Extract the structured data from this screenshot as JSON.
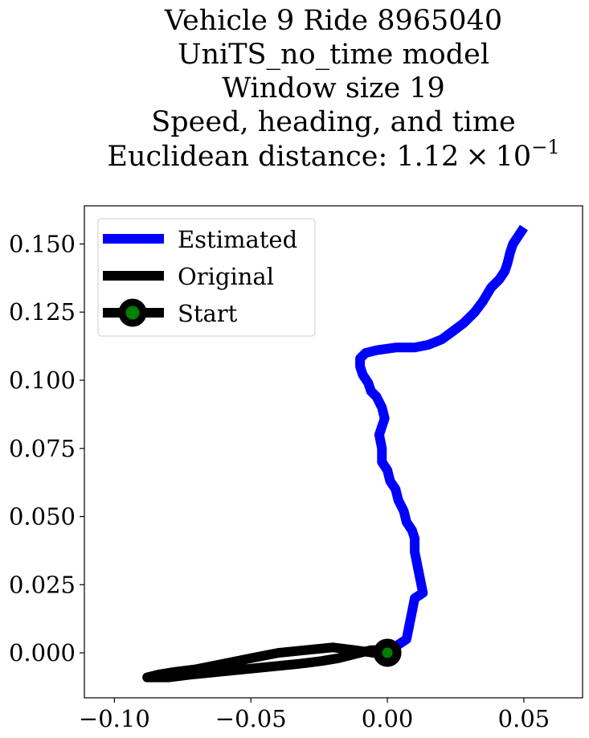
{
  "chart_data": {
    "type": "line",
    "title_lines": [
      "Vehicle 9 Ride 8965040",
      "UniTS_no_time model",
      "Window size 19",
      "Speed, heading, and time"
    ],
    "title_metric_prefix": "Euclidean distance: 1.12",
    "title_metric_times": "×",
    "title_metric_base": "10",
    "title_metric_exponent": "−1",
    "xlim": [
      -0.111,
      0.0715
    ],
    "ylim": [
      -0.0165,
      0.164
    ],
    "x_ticks": [
      -0.1,
      -0.05,
      0.0,
      0.05
    ],
    "x_tick_labels": [
      "−0.10",
      "−0.05",
      "0.00",
      "0.05"
    ],
    "y_ticks": [
      0.0,
      0.025,
      0.05,
      0.075,
      0.1,
      0.125,
      0.15
    ],
    "y_tick_labels": [
      "0.000",
      "0.025",
      "0.050",
      "0.075",
      "0.100",
      "0.125",
      "0.150"
    ],
    "grid": false,
    "legend_position": "upper-left",
    "colors": {
      "estimated": "#0000ff",
      "original": "#000000",
      "start_fill": "#008000",
      "start_edge": "#000000"
    },
    "series": [
      {
        "name": "Estimated",
        "x": [
          0.0,
          0.004,
          0.007,
          0.008,
          0.009,
          0.01,
          0.013,
          0.012,
          0.011,
          0.01,
          0.01,
          0.009,
          0.007,
          0.006,
          0.004,
          0.003,
          0.001,
          0.0,
          -0.002,
          -0.002,
          -0.003,
          -0.002,
          -0.001,
          -0.002,
          -0.004,
          -0.006,
          -0.007,
          -0.009,
          -0.01,
          -0.01,
          -0.008,
          -0.004,
          0.003,
          0.01,
          0.015,
          0.02,
          0.024,
          0.028,
          0.032,
          0.035,
          0.038,
          0.041,
          0.043,
          0.044,
          0.045,
          0.046,
          0.048,
          0.05
        ],
        "y": [
          0.0,
          0.003,
          0.005,
          0.01,
          0.015,
          0.02,
          0.022,
          0.027,
          0.032,
          0.037,
          0.042,
          0.045,
          0.048,
          0.052,
          0.056,
          0.06,
          0.063,
          0.067,
          0.07,
          0.075,
          0.08,
          0.083,
          0.086,
          0.09,
          0.094,
          0.096,
          0.099,
          0.102,
          0.105,
          0.108,
          0.11,
          0.111,
          0.112,
          0.112,
          0.113,
          0.115,
          0.118,
          0.121,
          0.125,
          0.129,
          0.134,
          0.137,
          0.14,
          0.143,
          0.147,
          0.15,
          0.153,
          0.156
        ]
      },
      {
        "name": "Original",
        "x": [
          0.0,
          -0.005,
          -0.012,
          -0.02,
          -0.03,
          -0.04,
          -0.05,
          -0.06,
          -0.07,
          -0.078,
          -0.084,
          -0.088,
          -0.086,
          -0.08,
          -0.072,
          -0.062,
          -0.052,
          -0.042,
          -0.032,
          -0.024,
          -0.018,
          -0.014,
          -0.01,
          -0.006,
          -0.003,
          0.0
        ],
        "y": [
          0.0,
          0.0,
          0.001,
          0.002,
          0.001,
          0.0,
          -0.002,
          -0.004,
          -0.006,
          -0.007,
          -0.008,
          -0.009,
          -0.009,
          -0.009,
          -0.008,
          -0.007,
          -0.006,
          -0.005,
          -0.004,
          -0.003,
          -0.002,
          -0.001,
          0.0,
          0.001,
          0.001,
          0.0
        ]
      }
    ],
    "start_point": {
      "name": "Start",
      "x": 0.0,
      "y": 0.0
    }
  }
}
